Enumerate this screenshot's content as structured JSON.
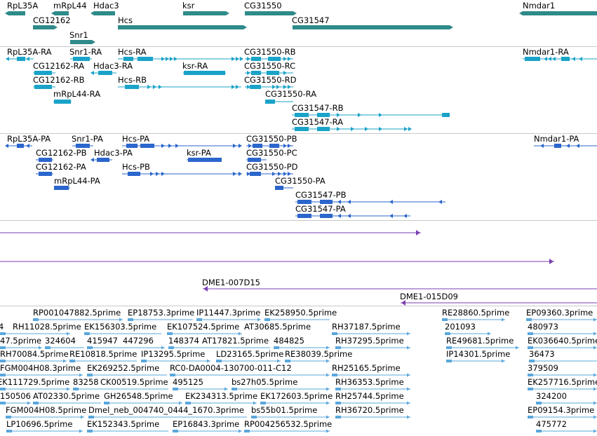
{
  "colors": {
    "gene": "#2f8a8a",
    "transcript": "#1aa3c8",
    "protein": "#2b66cc",
    "clone": "#7a3fb0",
    "est": "#5aa7dc",
    "separator": "#c8c8c8"
  },
  "genes": [
    {
      "label": "RpL35A"
    },
    {
      "label": "mRpL44"
    },
    {
      "label": "Hdac3"
    },
    {
      "label": "ksr"
    },
    {
      "label": "CG31550"
    },
    {
      "label": "Nmdar1"
    },
    {
      "label": "CG12162"
    },
    {
      "label": "Hcs"
    },
    {
      "label": "CG31547"
    },
    {
      "label": "Snr1"
    }
  ],
  "transcripts": [
    {
      "label": "RpL35A-RA"
    },
    {
      "label": "Snr1-RA"
    },
    {
      "label": "Hcs-RA"
    },
    {
      "label": "CG31550-RB"
    },
    {
      "label": "Nmdar1-RA"
    },
    {
      "label": "CG12162-RA"
    },
    {
      "label": "Hdac3-RA"
    },
    {
      "label": "ksr-RA"
    },
    {
      "label": "CG31550-RC"
    },
    {
      "label": "CG12162-RB"
    },
    {
      "label": "Hcs-RB"
    },
    {
      "label": "CG31550-RD"
    },
    {
      "label": "mRpL44-RA"
    },
    {
      "label": "CG31550-RA"
    },
    {
      "label": "CG31547-RB"
    },
    {
      "label": "CG31547-RA"
    }
  ],
  "proteins": [
    {
      "label": "RpL35A-PA"
    },
    {
      "label": "Snr1-PA"
    },
    {
      "label": "Hcs-PA"
    },
    {
      "label": "CG31550-PB"
    },
    {
      "label": "Nmdar1-PA"
    },
    {
      "label": "CG12162-PB"
    },
    {
      "label": "Hdac3-PA"
    },
    {
      "label": "ksr-PA"
    },
    {
      "label": "CG31550-PC"
    },
    {
      "label": "CG12162-PA"
    },
    {
      "label": "Hcs-PB"
    },
    {
      "label": "CG31550-PD"
    },
    {
      "label": "mRpL44-PA"
    },
    {
      "label": "CG31550-PA"
    },
    {
      "label": "CG31547-PB"
    },
    {
      "label": "CG31547-PA"
    }
  ],
  "clones": [
    {
      "label": "DME1-007D15"
    },
    {
      "label": "DME1-015D09"
    }
  ],
  "ests": [
    {
      "label": "RP001047882.5prime"
    },
    {
      "label": "EP18753.3prime"
    },
    {
      "label": "IP11447.3prime"
    },
    {
      "label": "EK258950.5prime"
    },
    {
      "label": "RE28860.5prime"
    },
    {
      "label": "EP09360.3prime"
    },
    {
      "label": "4"
    },
    {
      "label": "RH11028.5prime"
    },
    {
      "label": "EK156303.5prime"
    },
    {
      "label": "EK107524.5prime"
    },
    {
      "label": "AT30685.5prime"
    },
    {
      "label": "RH37187.5prime"
    },
    {
      "label": "201093"
    },
    {
      "label": "480973"
    },
    {
      "label": "47.5prime"
    },
    {
      "label": "324604"
    },
    {
      "label": "415947"
    },
    {
      "label": "447296"
    },
    {
      "label": "148374"
    },
    {
      "label": "AT17821.5prime"
    },
    {
      "label": "484825"
    },
    {
      "label": "RH37295.5prime"
    },
    {
      "label": "RE49681.5prime"
    },
    {
      "label": "EK036640.5prime"
    },
    {
      "label": "RH70084.5prime"
    },
    {
      "label": "RE10818.5prime"
    },
    {
      "label": "IP13295.5prime"
    },
    {
      "label": "LD23165.5prime"
    },
    {
      "label": "RE38039.5prime"
    },
    {
      "label": "IP14301.5prime"
    },
    {
      "label": "36473"
    },
    {
      "label": "FGM004H08.3prime"
    },
    {
      "label": "EK269252.5prime"
    },
    {
      "label": "RC0-DA0004-130700-011-C12"
    },
    {
      "label": "RH25165.5prime"
    },
    {
      "label": "379509"
    },
    {
      "label": "EK111729.5prime"
    },
    {
      "label": "83258"
    },
    {
      "label": "CK00519.5prime"
    },
    {
      "label": "495125"
    },
    {
      "label": "bs27h05.5prime"
    },
    {
      "label": "RH36353.5prime"
    },
    {
      "label": "EK257716.5prime"
    },
    {
      "label": "150506"
    },
    {
      "label": "AT02330.5prime"
    },
    {
      "label": "GH26548.5prime"
    },
    {
      "label": "EK234313.5prime"
    },
    {
      "label": "EK172603.5prime"
    },
    {
      "label": "RH25744.5prime"
    },
    {
      "label": "324200"
    },
    {
      "label": "FGM004H08.5prime"
    },
    {
      "label": "Dmel_neb_004740_0444_1670.3prime"
    },
    {
      "label": "bs55b01.5prime"
    },
    {
      "label": "RH36720.5prime"
    },
    {
      "label": "EP09154.3prime"
    },
    {
      "label": "LP10696.5prime"
    },
    {
      "label": "EK152343.5prime"
    },
    {
      "label": "EP16843.3prime"
    },
    {
      "label": "RP004256532.5prime"
    },
    {
      "label": "475772"
    }
  ]
}
